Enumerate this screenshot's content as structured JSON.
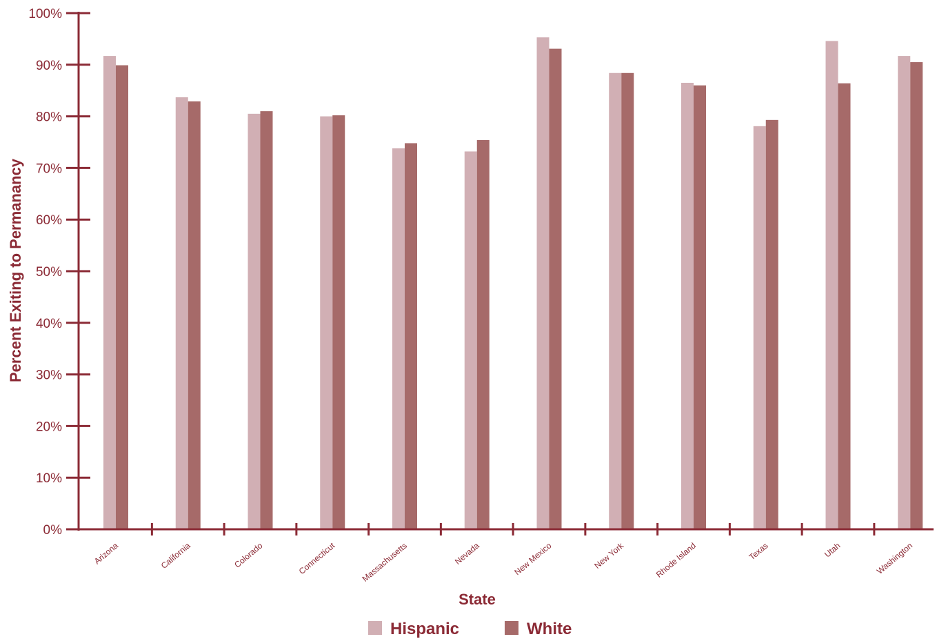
{
  "chart_data": {
    "type": "bar",
    "xlabel": "State",
    "ylabel": "Percent Exiting to Permanancy",
    "ylim": [
      0,
      100
    ],
    "yticks": [
      "0%",
      "10%",
      "20%",
      "30%",
      "40%",
      "50%",
      "60%",
      "70%",
      "80%",
      "90%",
      "100%"
    ],
    "categories": [
      "Arizona",
      "California",
      "Colorado",
      "Connecticut",
      "Massachusetts",
      "Nevada",
      "New Mexico",
      "New York",
      "Rhode Island",
      "Texas",
      "Utah",
      "Washington"
    ],
    "series": [
      {
        "name": "Hispanic",
        "color": "#d1afb4",
        "values": [
          91.7,
          83.7,
          80.5,
          80.0,
          73.8,
          73.2,
          95.3,
          88.4,
          86.5,
          78.1,
          94.6,
          91.7
        ]
      },
      {
        "name": "White",
        "color": "#a66a69",
        "values": [
          89.9,
          82.9,
          81.0,
          80.2,
          74.8,
          75.4,
          93.1,
          88.4,
          86.0,
          79.3,
          86.4,
          90.5
        ]
      }
    ],
    "axis_color": "#8b2a35",
    "legend_position": "bottom-center",
    "grid": false
  }
}
